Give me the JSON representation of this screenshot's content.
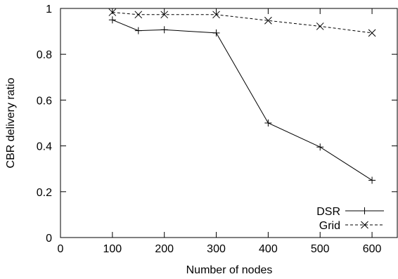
{
  "chart_data": {
    "type": "line",
    "title": "",
    "xlabel": "Number of nodes",
    "ylabel": "CBR delivery ratio",
    "xlim": [
      0,
      650
    ],
    "ylim": [
      0,
      1
    ],
    "xticks": [
      0,
      100,
      200,
      300,
      400,
      500,
      600
    ],
    "yticks": [
      0,
      0.2,
      0.4,
      0.6,
      0.8,
      1
    ],
    "xtick_labels": [
      "0",
      "100",
      "200",
      "300",
      "400",
      "500",
      "600"
    ],
    "ytick_labels": [
      "0",
      "0.2",
      "0.4",
      "0.6",
      "0.8",
      "1"
    ],
    "grid": false,
    "legend_position": "bottom-right",
    "series": [
      {
        "name": "DSR",
        "marker": "plus",
        "line_style": "solid",
        "color": "#000000",
        "x": [
          100,
          150,
          200,
          300,
          400,
          500,
          600
        ],
        "y": [
          0.95,
          0.903,
          0.907,
          0.893,
          0.5,
          0.395,
          0.25
        ]
      },
      {
        "name": "Grid",
        "marker": "cross",
        "line_style": "dashed",
        "color": "#000000",
        "x": [
          100,
          150,
          200,
          300,
          400,
          500,
          600
        ],
        "y": [
          0.983,
          0.973,
          0.973,
          0.973,
          0.947,
          0.922,
          0.893
        ]
      }
    ]
  }
}
